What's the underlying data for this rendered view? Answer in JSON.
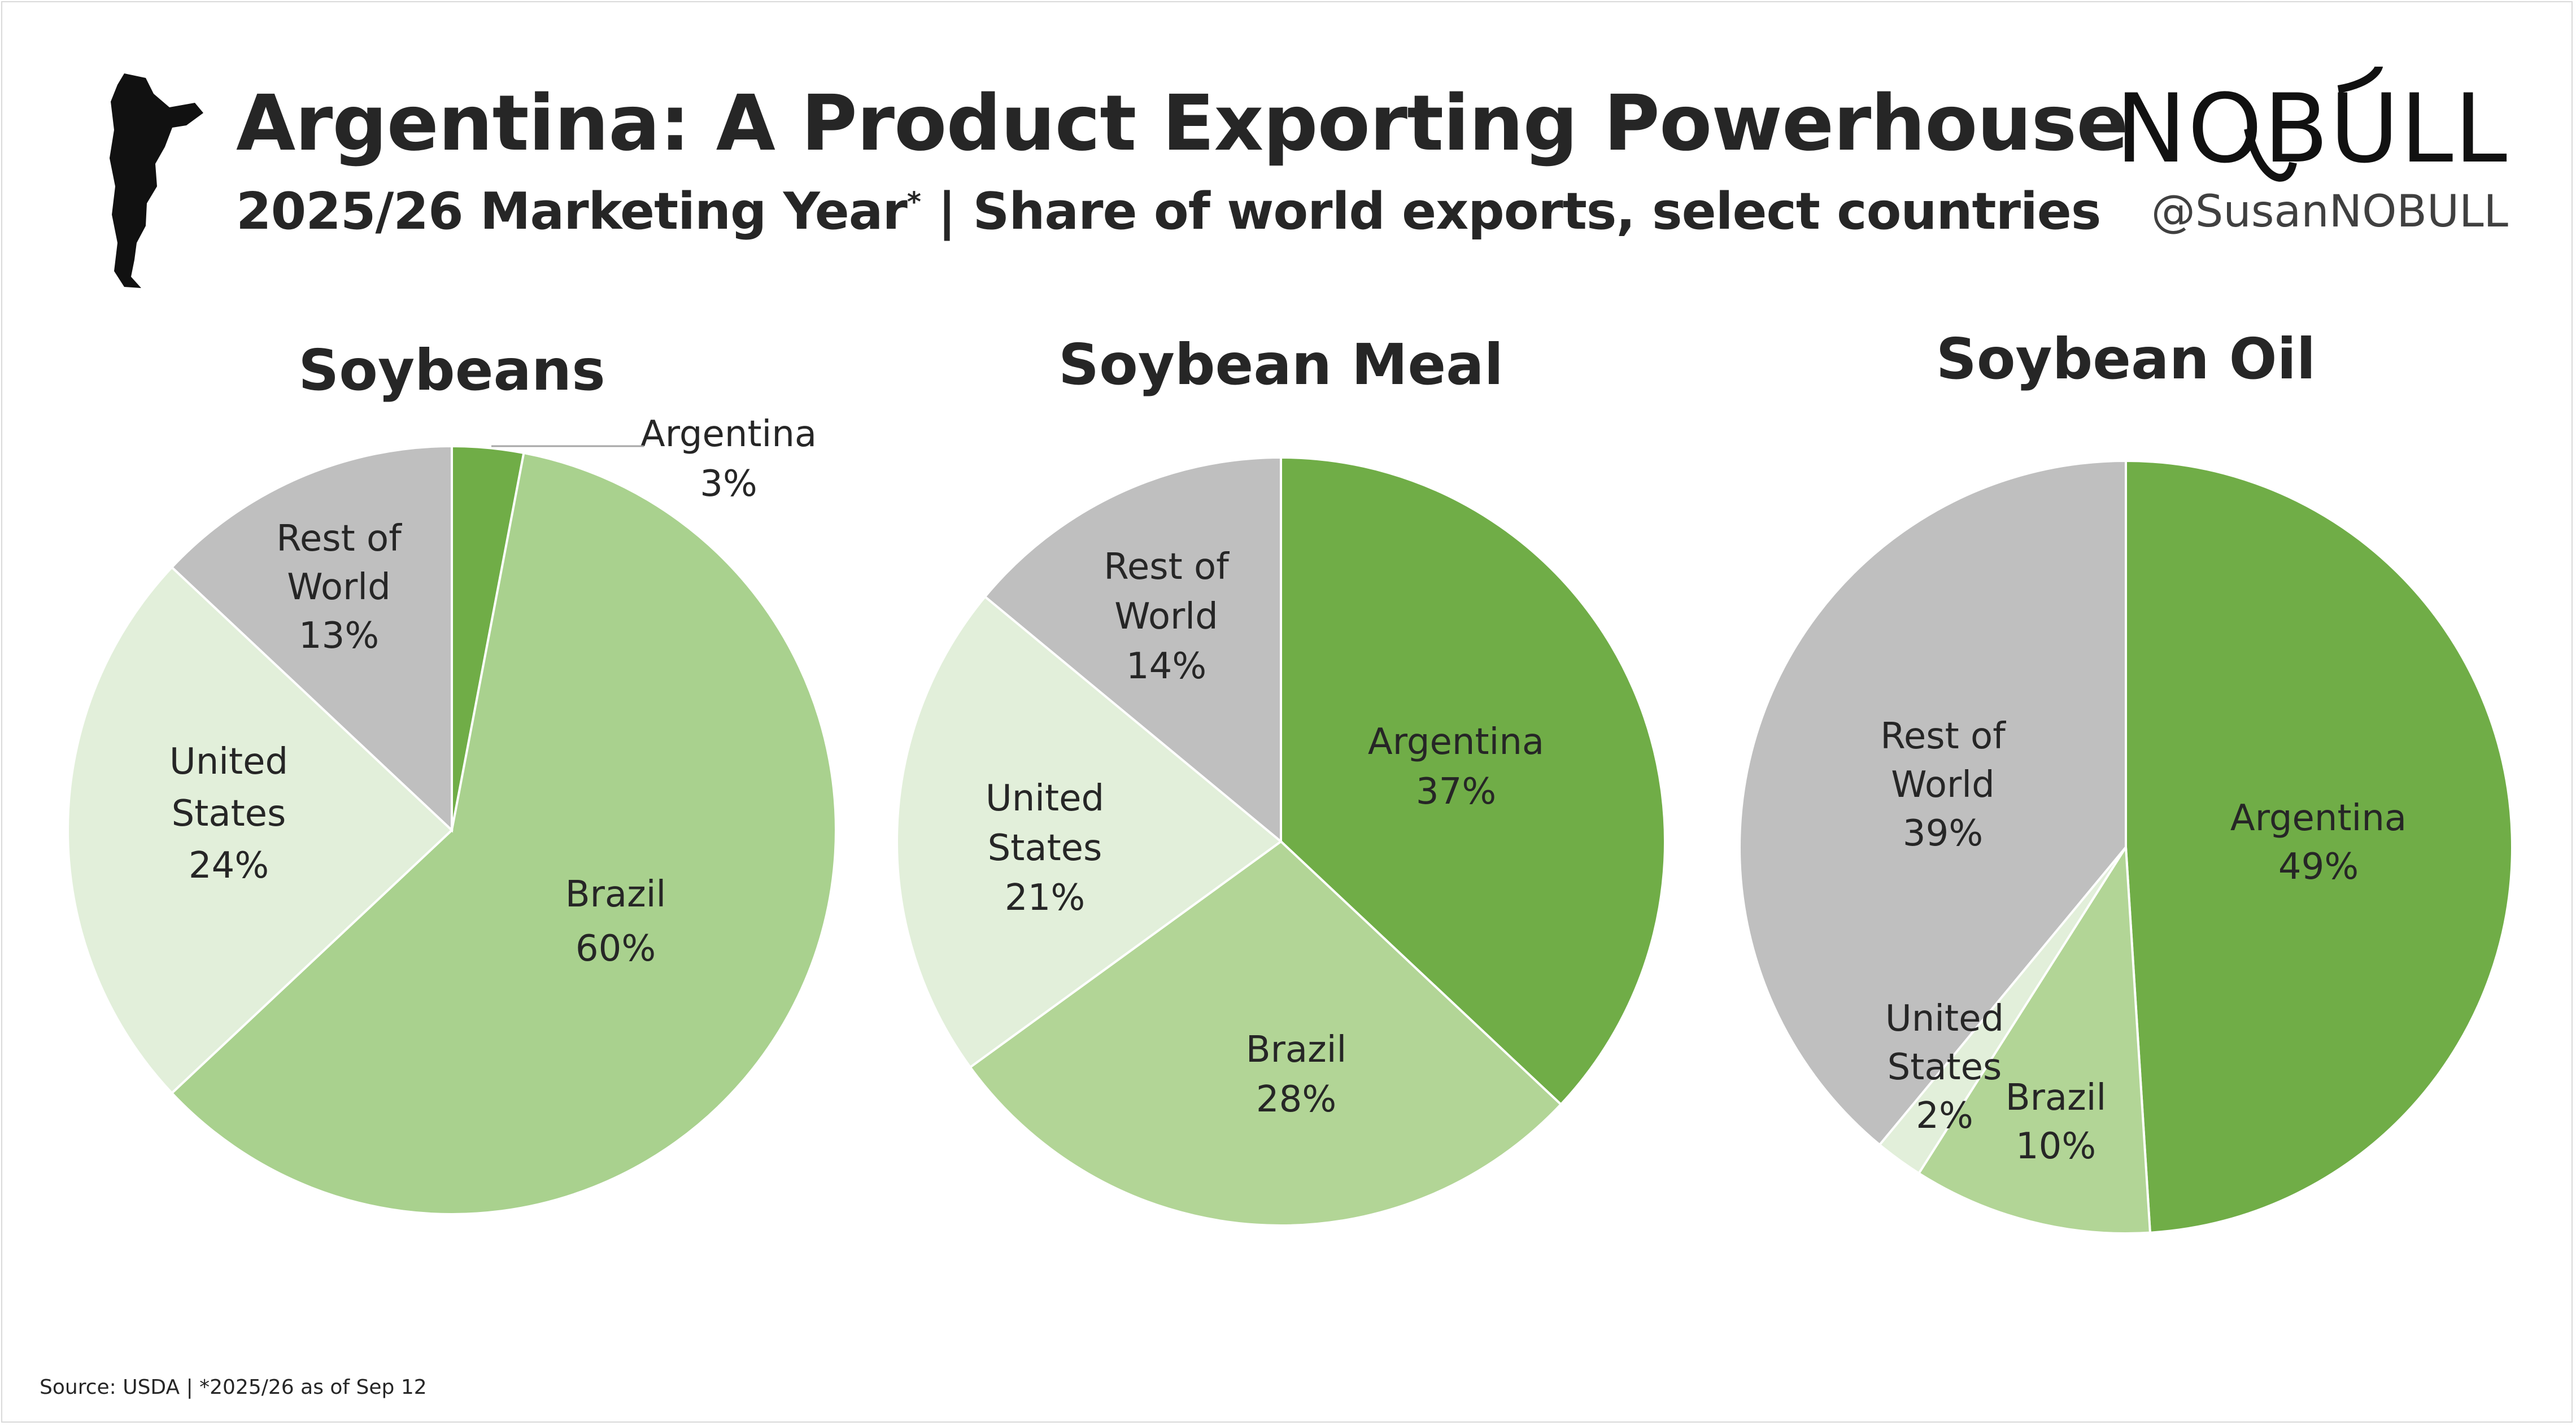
{
  "header": {
    "title": "Argentina: A Product Exporting Powerhouse",
    "subtitle": "2025/26 Marketing Year",
    "subtitle_marker": "*",
    "subtitle_rest": " | Share of world exports, select countries"
  },
  "brand": {
    "logo_text": "NOBULL",
    "handle": "@SusanNOBULL"
  },
  "footer": {
    "source": "Source: USDA | *2025/26 as of Sep 12"
  },
  "colors": {
    "argentina": "#70ad47",
    "brazil": "#a9d18e",
    "united_states": "#e2efda",
    "rest_of_world": "#bfbfbf"
  },
  "chart_data": [
    {
      "type": "pie",
      "title": "Soybeans",
      "categories": [
        "Argentina",
        "Brazil",
        "United States",
        "Rest of World"
      ],
      "values": [
        3,
        60,
        24,
        13
      ],
      "labels": [
        [
          "Argentina",
          "3%"
        ],
        [
          "Brazil",
          "60%"
        ],
        [
          "United",
          "States",
          "24%"
        ],
        [
          "Rest of",
          "World",
          "13%"
        ]
      ],
      "colors": [
        "#70ad47",
        "#a9d18e",
        "#e2efda",
        "#bfbfbf"
      ]
    },
    {
      "type": "pie",
      "title": "Soybean Meal",
      "categories": [
        "Argentina",
        "Brazil",
        "United States",
        "Rest of World"
      ],
      "values": [
        37,
        28,
        21,
        14
      ],
      "labels": [
        [
          "Argentina",
          "37%"
        ],
        [
          "Brazil",
          "28%"
        ],
        [
          "United",
          "States",
          "21%"
        ],
        [
          "Rest of",
          "World",
          "14%"
        ]
      ],
      "colors": [
        "#70ad47",
        "#b2d596",
        "#e2efda",
        "#bfbfbf"
      ]
    },
    {
      "type": "pie",
      "title": "Soybean Oil",
      "categories": [
        "Argentina",
        "Brazil",
        "United States",
        "Rest of World"
      ],
      "values": [
        49,
        10,
        2,
        39
      ],
      "labels": [
        [
          "Argentina",
          "49%"
        ],
        [
          "Brazil",
          "10%"
        ],
        [
          "United",
          "States",
          "2%"
        ],
        [
          "Rest of",
          "World",
          "39%"
        ]
      ],
      "colors": [
        "#70ad47",
        "#b2d596",
        "#e2efda",
        "#bfbfbf"
      ]
    }
  ]
}
